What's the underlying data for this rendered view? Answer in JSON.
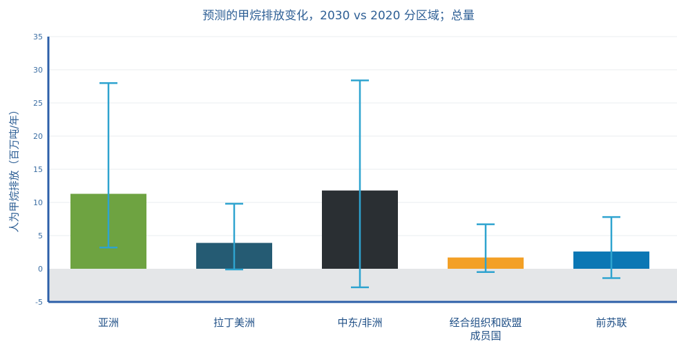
{
  "chart_data": {
    "type": "bar",
    "title": "预测的甲烷排放变化，2030 vs 2020 分区域；总量",
    "ylabel": "人为甲烷排放（百万吨/年）",
    "xlabel": "",
    "ylim": [
      -5,
      35
    ],
    "yticks": [
      -5,
      0,
      5,
      10,
      15,
      20,
      25,
      30,
      35
    ],
    "grid": true,
    "categories": [
      [
        "亚洲"
      ],
      [
        "拉丁美洲"
      ],
      [
        "中东/非洲"
      ],
      [
        "经合组织和欧盟",
        "成员国"
      ],
      [
        "前苏联"
      ]
    ],
    "values": [
      11.3,
      3.9,
      11.8,
      1.7,
      2.6
    ],
    "error_low": [
      3.2,
      -0.1,
      -2.8,
      -0.5,
      -1.4
    ],
    "error_high": [
      28.0,
      9.8,
      28.4,
      6.7,
      7.8
    ],
    "colors": [
      "#6ea341",
      "#255b73",
      "#2a2f33",
      "#f3a026",
      "#0b77b4"
    ],
    "errorbar_color": "#2ea3cf",
    "negative_region_color": "#e4e6e8",
    "axis_color": "#2c5fa8"
  }
}
